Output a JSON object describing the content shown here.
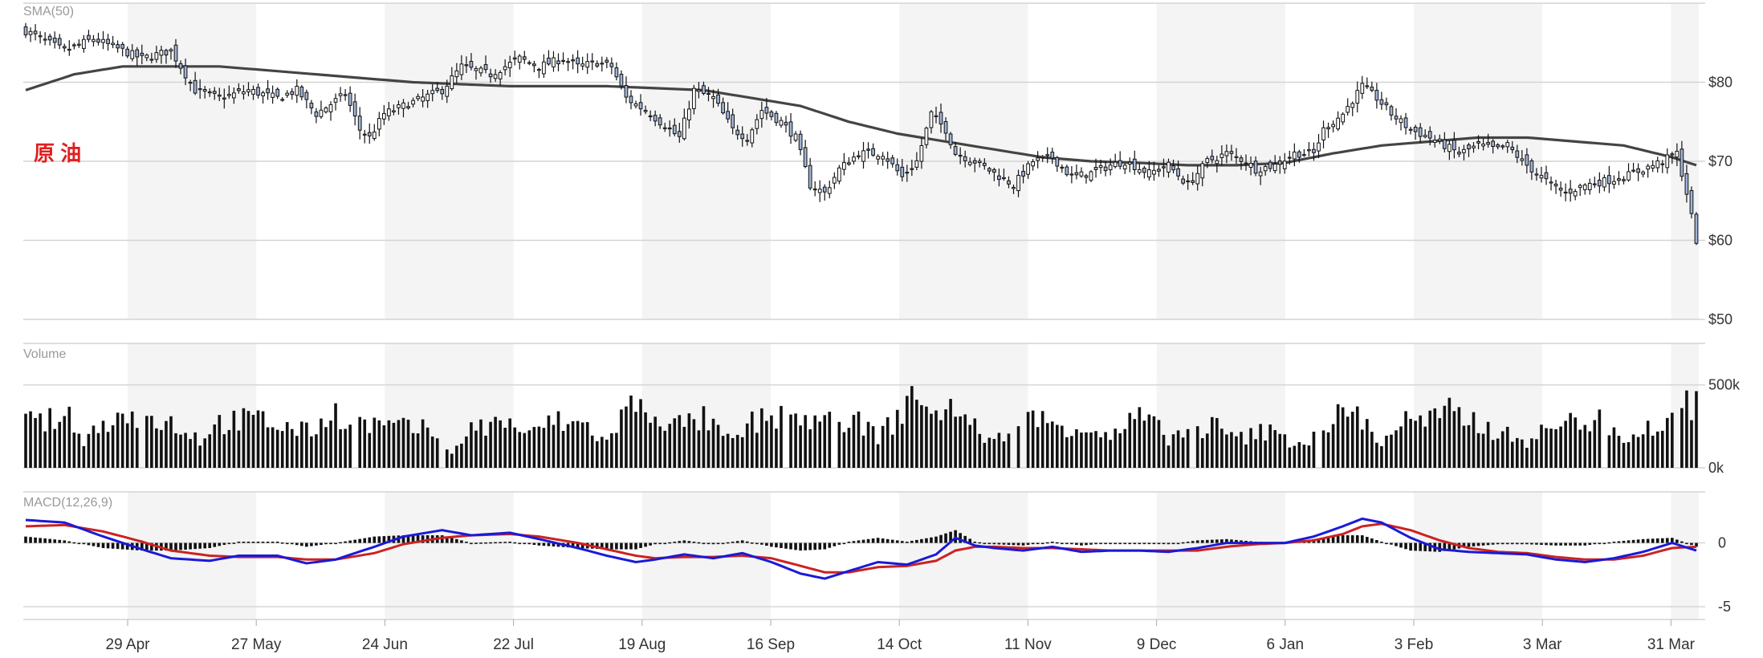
{
  "colors": {
    "band": "#f4f4f4",
    "grid": "#d4d4d4",
    "sma": "#444444",
    "candle_up_fill": "#ffffff",
    "candle_down_fill": "#9fb4d8",
    "candle_stroke": "#111111",
    "volume": "#111111",
    "macd_line": "#1a1ad8",
    "signal_line": "#cc2222",
    "hist": "#111111",
    "label_red": "#e02020",
    "axis_text": "#333333",
    "panel_title": "#999999"
  },
  "panels": {
    "price": {
      "title": "SMA(50)",
      "overlay_label": "原 油"
    },
    "volume": {
      "title": "Volume"
    },
    "macd": {
      "title": "MACD(12,26,9)"
    }
  },
  "chart_data": {
    "type": "candlestick",
    "x_labels": [
      "29 Apr",
      "27 May",
      "24 Jun",
      "22 Jul",
      "19 Aug",
      "16 Sep",
      "14 Oct",
      "11 Nov",
      "9 Dec",
      "6 Jan",
      "3 Feb",
      "3 Mar",
      "31 Mar"
    ],
    "price": {
      "ylim": [
        50,
        90
      ],
      "ticks": [
        {
          "v": 80,
          "label": "$80"
        },
        {
          "v": 70,
          "label": "$70"
        },
        {
          "v": 60,
          "label": "$60"
        },
        {
          "v": 50,
          "label": "$50"
        }
      ],
      "close_anchors": [
        [
          0,
          86.5
        ],
        [
          8,
          84
        ],
        [
          14,
          85.5
        ],
        [
          24,
          83
        ],
        [
          30,
          84
        ],
        [
          35,
          79
        ],
        [
          40,
          78
        ],
        [
          46,
          79
        ],
        [
          52,
          78
        ],
        [
          56,
          79
        ],
        [
          60,
          76
        ],
        [
          66,
          78.5
        ],
        [
          69,
          74
        ],
        [
          71,
          73
        ],
        [
          74,
          76
        ],
        [
          78,
          77
        ],
        [
          82,
          78
        ],
        [
          86,
          79
        ],
        [
          90,
          82
        ],
        [
          96,
          81
        ],
        [
          102,
          83
        ],
        [
          106,
          82
        ],
        [
          111,
          83
        ],
        [
          114,
          82
        ],
        [
          118,
          82.5
        ],
        [
          121,
          82
        ],
        [
          124,
          78
        ],
        [
          129,
          76
        ],
        [
          131,
          75
        ],
        [
          135,
          73
        ],
        [
          138,
          79
        ],
        [
          142,
          78
        ],
        [
          146,
          74
        ],
        [
          149,
          73
        ],
        [
          152,
          76.5
        ],
        [
          156,
          75
        ],
        [
          159,
          73
        ],
        [
          162,
          67
        ],
        [
          165,
          66
        ],
        [
          168,
          69
        ],
        [
          172,
          71
        ],
        [
          177,
          71
        ],
        [
          181,
          68
        ],
        [
          184,
          70
        ],
        [
          187,
          76
        ],
        [
          190,
          74
        ],
        [
          192,
          71
        ],
        [
          196,
          70
        ],
        [
          200,
          68.5
        ],
        [
          204,
          67
        ],
        [
          208,
          70
        ],
        [
          212,
          70.5
        ],
        [
          216,
          68
        ],
        [
          220,
          68.5
        ],
        [
          224,
          69.5
        ],
        [
          227,
          70
        ],
        [
          232,
          68.5
        ],
        [
          236,
          69.5
        ],
        [
          240,
          67
        ],
        [
          244,
          70
        ],
        [
          248,
          71
        ],
        [
          252,
          70
        ],
        [
          254,
          69
        ],
        [
          258,
          69.5
        ],
        [
          262,
          71
        ],
        [
          266,
          71
        ],
        [
          268,
          74
        ],
        [
          272,
          76
        ],
        [
          276,
          79.5
        ],
        [
          279,
          78
        ],
        [
          282,
          76
        ],
        [
          286,
          74
        ],
        [
          290,
          73
        ],
        [
          293,
          72
        ],
        [
          296,
          71
        ],
        [
          300,
          72
        ],
        [
          304,
          71.5
        ],
        [
          306,
          72
        ],
        [
          309,
          70
        ],
        [
          312,
          68.5
        ],
        [
          315,
          67
        ],
        [
          318,
          66
        ],
        [
          322,
          67
        ],
        [
          326,
          67.5
        ],
        [
          330,
          68
        ],
        [
          334,
          69
        ],
        [
          338,
          70
        ],
        [
          341,
          71
        ],
        [
          343,
          66
        ],
        [
          345,
          60
        ]
      ],
      "sma_anchors": [
        [
          0,
          79
        ],
        [
          10,
          81
        ],
        [
          20,
          82
        ],
        [
          40,
          82
        ],
        [
          60,
          81
        ],
        [
          80,
          80
        ],
        [
          100,
          79.5
        ],
        [
          120,
          79.5
        ],
        [
          140,
          79
        ],
        [
          160,
          77
        ],
        [
          170,
          75
        ],
        [
          180,
          73.5
        ],
        [
          190,
          72.5
        ],
        [
          200,
          71.5
        ],
        [
          210,
          70.5
        ],
        [
          220,
          70
        ],
        [
          230,
          69.8
        ],
        [
          240,
          69.5
        ],
        [
          250,
          69.5
        ],
        [
          260,
          69.8
        ],
        [
          270,
          71
        ],
        [
          280,
          72
        ],
        [
          290,
          72.5
        ],
        [
          300,
          73
        ],
        [
          310,
          73
        ],
        [
          320,
          72.5
        ],
        [
          330,
          72
        ],
        [
          340,
          70.5
        ],
        [
          345,
          69.5
        ]
      ]
    },
    "volume": {
      "ylim": [
        0,
        750
      ],
      "ticks": [
        {
          "v": 500,
          "label": "500k"
        },
        {
          "v": 0,
          "label": "0k"
        }
      ],
      "anchors": [
        [
          0,
          280
        ],
        [
          10,
          300
        ],
        [
          12,
          150
        ],
        [
          16,
          300
        ],
        [
          22,
          320
        ],
        [
          30,
          280
        ],
        [
          36,
          180
        ],
        [
          40,
          280
        ],
        [
          48,
          300
        ],
        [
          54,
          250
        ],
        [
          58,
          220
        ],
        [
          64,
          340
        ],
        [
          70,
          270
        ],
        [
          76,
          250
        ],
        [
          84,
          230
        ],
        [
          88,
          100
        ],
        [
          92,
          240
        ],
        [
          100,
          290
        ],
        [
          104,
          190
        ],
        [
          108,
          290
        ],
        [
          116,
          260
        ],
        [
          120,
          150
        ],
        [
          124,
          380
        ],
        [
          130,
          340
        ],
        [
          134,
          260
        ],
        [
          140,
          300
        ],
        [
          146,
          150
        ],
        [
          150,
          280
        ],
        [
          158,
          330
        ],
        [
          164,
          280
        ],
        [
          170,
          310
        ],
        [
          176,
          200
        ],
        [
          180,
          300
        ],
        [
          184,
          520
        ],
        [
          186,
          300
        ],
        [
          190,
          400
        ],
        [
          196,
          250
        ],
        [
          200,
          150
        ],
        [
          206,
          330
        ],
        [
          212,
          270
        ],
        [
          220,
          250
        ],
        [
          224,
          180
        ],
        [
          230,
          320
        ],
        [
          236,
          190
        ],
        [
          240,
          220
        ],
        [
          246,
          260
        ],
        [
          250,
          170
        ],
        [
          256,
          230
        ],
        [
          260,
          180
        ],
        [
          264,
          150
        ],
        [
          270,
          300
        ],
        [
          274,
          360
        ],
        [
          276,
          300
        ],
        [
          280,
          150
        ],
        [
          284,
          290
        ],
        [
          290,
          290
        ],
        [
          294,
          340
        ],
        [
          298,
          300
        ],
        [
          302,
          250
        ],
        [
          306,
          200
        ],
        [
          310,
          170
        ],
        [
          316,
          260
        ],
        [
          322,
          300
        ],
        [
          326,
          280
        ],
        [
          330,
          200
        ],
        [
          336,
          250
        ],
        [
          340,
          300
        ],
        [
          345,
          430
        ]
      ]
    },
    "macd": {
      "ylim": [
        -6,
        4
      ],
      "ticks": [
        {
          "v": 0,
          "label": "0"
        },
        {
          "v": -5,
          "label": "-5"
        }
      ],
      "macd_anchors": [
        [
          0,
          1.8
        ],
        [
          8,
          1.6
        ],
        [
          16,
          0.5
        ],
        [
          24,
          -0.5
        ],
        [
          30,
          -1.2
        ],
        [
          38,
          -1.4
        ],
        [
          44,
          -1.0
        ],
        [
          52,
          -1.0
        ],
        [
          58,
          -1.6
        ],
        [
          64,
          -1.3
        ],
        [
          72,
          -0.3
        ],
        [
          78,
          0.5
        ],
        [
          86,
          1.0
        ],
        [
          92,
          0.6
        ],
        [
          100,
          0.8
        ],
        [
          106,
          0.3
        ],
        [
          114,
          -0.4
        ],
        [
          120,
          -1.0
        ],
        [
          126,
          -1.5
        ],
        [
          130,
          -1.3
        ],
        [
          136,
          -0.9
        ],
        [
          142,
          -1.2
        ],
        [
          148,
          -0.8
        ],
        [
          154,
          -1.5
        ],
        [
          160,
          -2.4
        ],
        [
          165,
          -2.8
        ],
        [
          170,
          -2.2
        ],
        [
          176,
          -1.5
        ],
        [
          182,
          -1.7
        ],
        [
          188,
          -0.9
        ],
        [
          192,
          0.4
        ],
        [
          196,
          -0.2
        ],
        [
          200,
          -0.4
        ],
        [
          206,
          -0.6
        ],
        [
          212,
          -0.3
        ],
        [
          218,
          -0.7
        ],
        [
          224,
          -0.6
        ],
        [
          230,
          -0.6
        ],
        [
          236,
          -0.7
        ],
        [
          242,
          -0.4
        ],
        [
          248,
          0.0
        ],
        [
          254,
          0.0
        ],
        [
          260,
          0.0
        ],
        [
          266,
          0.5
        ],
        [
          272,
          1.3
        ],
        [
          276,
          1.9
        ],
        [
          280,
          1.6
        ],
        [
          286,
          0.4
        ],
        [
          292,
          -0.5
        ],
        [
          298,
          -0.7
        ],
        [
          304,
          -0.8
        ],
        [
          310,
          -0.9
        ],
        [
          316,
          -1.3
        ],
        [
          322,
          -1.5
        ],
        [
          328,
          -1.2
        ],
        [
          334,
          -0.7
        ],
        [
          340,
          0.0
        ],
        [
          345,
          -0.6
        ]
      ],
      "signal_anchors": [
        [
          0,
          1.3
        ],
        [
          8,
          1.4
        ],
        [
          16,
          0.9
        ],
        [
          24,
          0.1
        ],
        [
          30,
          -0.6
        ],
        [
          38,
          -1.0
        ],
        [
          44,
          -1.1
        ],
        [
          52,
          -1.1
        ],
        [
          58,
          -1.3
        ],
        [
          64,
          -1.3
        ],
        [
          72,
          -0.8
        ],
        [
          78,
          -0.1
        ],
        [
          86,
          0.4
        ],
        [
          92,
          0.6
        ],
        [
          100,
          0.7
        ],
        [
          106,
          0.5
        ],
        [
          114,
          0.0
        ],
        [
          120,
          -0.5
        ],
        [
          126,
          -1.0
        ],
        [
          130,
          -1.2
        ],
        [
          136,
          -1.1
        ],
        [
          142,
          -1.1
        ],
        [
          148,
          -1.0
        ],
        [
          154,
          -1.2
        ],
        [
          160,
          -1.8
        ],
        [
          165,
          -2.3
        ],
        [
          170,
          -2.3
        ],
        [
          176,
          -1.9
        ],
        [
          182,
          -1.8
        ],
        [
          188,
          -1.4
        ],
        [
          192,
          -0.6
        ],
        [
          196,
          -0.3
        ],
        [
          200,
          -0.3
        ],
        [
          206,
          -0.4
        ],
        [
          212,
          -0.4
        ],
        [
          218,
          -0.5
        ],
        [
          224,
          -0.6
        ],
        [
          230,
          -0.6
        ],
        [
          236,
          -0.6
        ],
        [
          242,
          -0.6
        ],
        [
          248,
          -0.3
        ],
        [
          254,
          -0.1
        ],
        [
          260,
          0.0
        ],
        [
          266,
          0.2
        ],
        [
          272,
          0.7
        ],
        [
          276,
          1.3
        ],
        [
          280,
          1.5
        ],
        [
          286,
          1.0
        ],
        [
          292,
          0.2
        ],
        [
          298,
          -0.4
        ],
        [
          304,
          -0.7
        ],
        [
          310,
          -0.8
        ],
        [
          316,
          -1.1
        ],
        [
          322,
          -1.3
        ],
        [
          328,
          -1.3
        ],
        [
          334,
          -1.0
        ],
        [
          340,
          -0.4
        ],
        [
          345,
          -0.3
        ]
      ]
    }
  }
}
